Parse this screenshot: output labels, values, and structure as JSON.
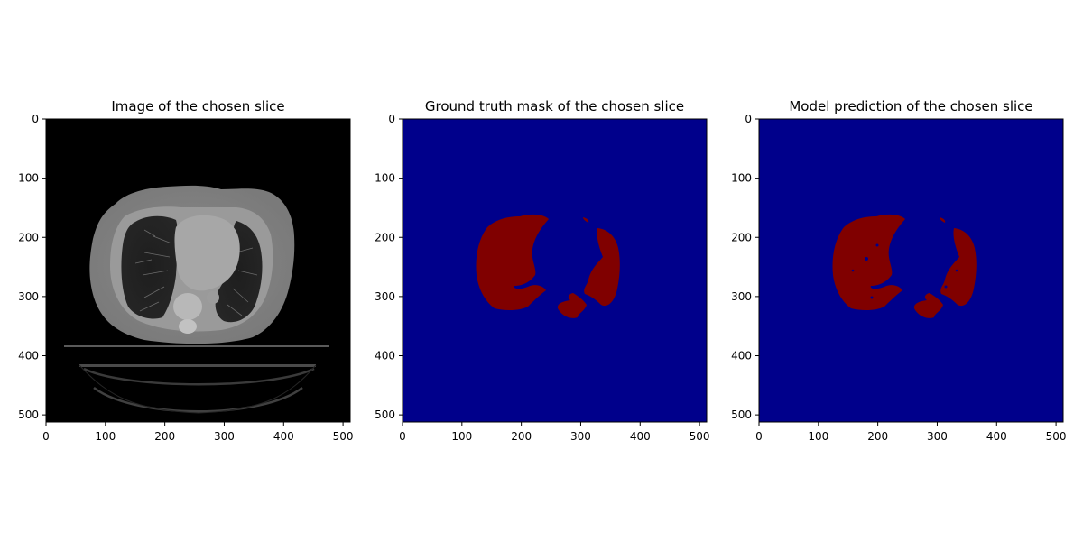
{
  "chart_data": [
    {
      "type": "heatmap",
      "title": "Image of the chosen slice",
      "colormap": "gray",
      "xlim": [
        0,
        512
      ],
      "ylim": [
        512,
        0
      ],
      "xticks": [
        0,
        100,
        200,
        300,
        400,
        500
      ],
      "yticks": [
        0,
        100,
        200,
        300,
        400,
        500
      ],
      "grid": false,
      "content": "CT axial slice"
    },
    {
      "type": "heatmap",
      "title": "Ground truth mask of the chosen slice",
      "colormap": "jet",
      "xlim": [
        0,
        512
      ],
      "ylim": [
        512,
        0
      ],
      "xticks": [
        0,
        100,
        200,
        300,
        400,
        500
      ],
      "yticks": [
        0,
        100,
        200,
        300,
        400,
        500
      ],
      "grid": false,
      "content": "binary mask"
    },
    {
      "type": "heatmap",
      "title": "Model prediction of the chosen slice",
      "colormap": "jet",
      "xlim": [
        0,
        512
      ],
      "ylim": [
        512,
        0
      ],
      "xticks": [
        0,
        100,
        200,
        300,
        400,
        500
      ],
      "yticks": [
        0,
        100,
        200,
        300,
        400,
        500
      ],
      "grid": false,
      "content": "binary mask"
    }
  ],
  "colors": {
    "mask_background": "#00008b",
    "mask_foreground": "#800000",
    "ct_background": "#000000"
  }
}
